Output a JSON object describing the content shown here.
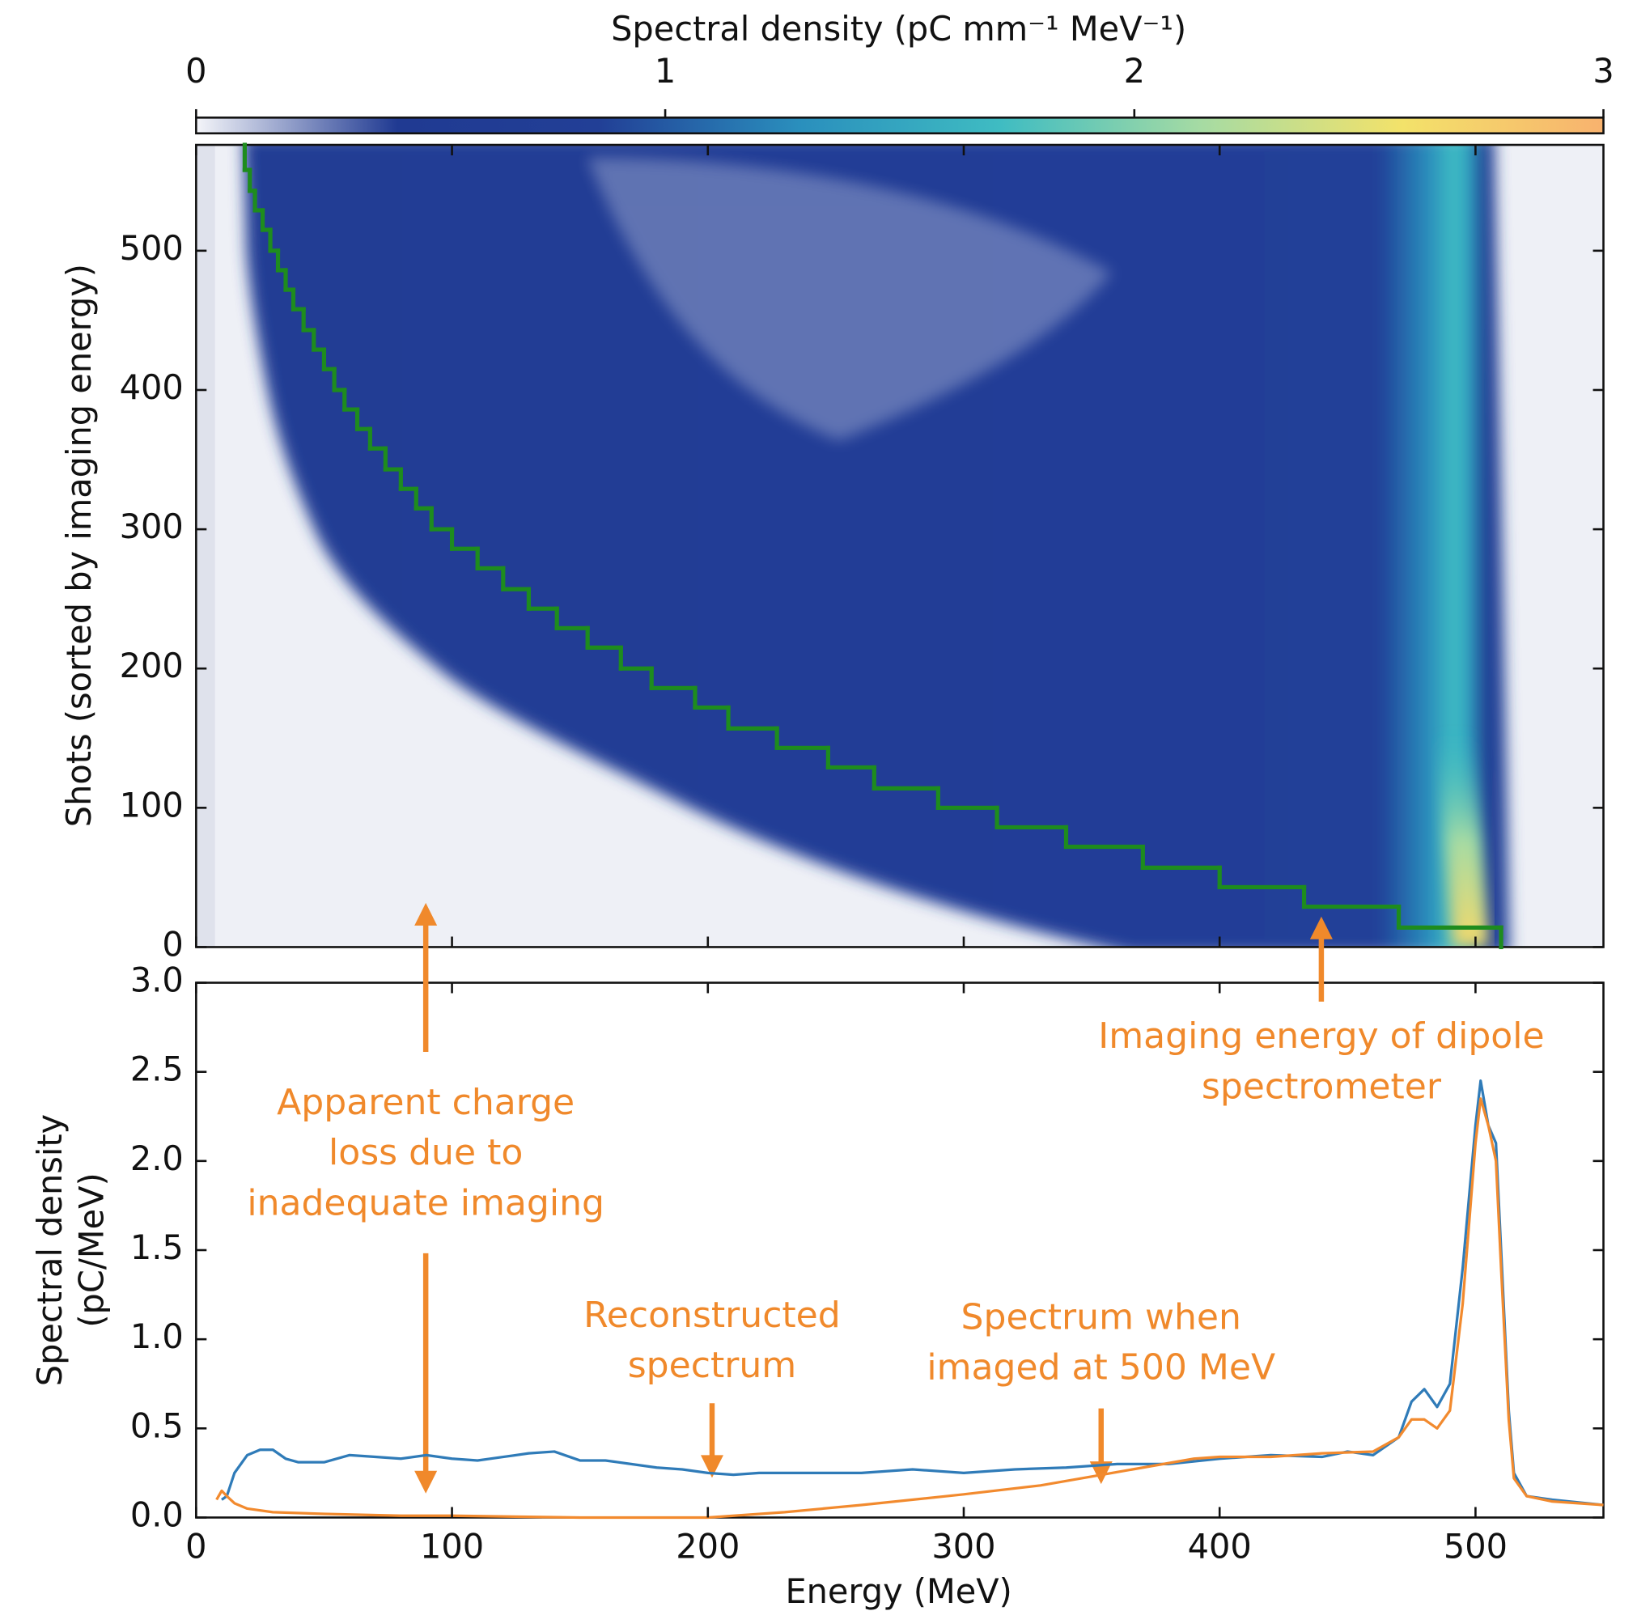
{
  "chart_data": [
    {
      "type": "heatmap",
      "ylabel": "Shots (sorted by imaging energy)",
      "colorbar": {
        "label": "Spectral density (pC mm⁻¹ MeV⁻¹)",
        "lim": [
          0,
          3
        ],
        "ticks": [
          0,
          1,
          2,
          3
        ],
        "colors": [
          "#f4f5f9",
          "#203a92",
          "#223f96",
          "#2a8fbd",
          "#3fbcc2",
          "#a6dba3",
          "#f3e26a",
          "#f8b26e"
        ]
      },
      "xlim": [
        0,
        550
      ],
      "ylim": [
        0,
        576
      ],
      "xticks": [
        0,
        100,
        200,
        300,
        400,
        500
      ],
      "yticks": [
        0,
        100,
        200,
        300,
        400,
        500
      ],
      "staircase": {
        "color": "#1e8c1e",
        "energy": [
          510,
          470,
          433,
          400,
          370,
          340,
          313,
          290,
          265,
          247,
          227,
          208,
          195,
          178,
          166,
          153,
          141,
          130,
          120,
          110,
          100,
          92,
          86,
          80,
          74,
          68,
          63,
          58,
          54,
          50,
          46,
          42,
          38,
          35,
          32,
          29,
          26,
          23,
          21,
          19
        ],
        "shots": [
          0,
          14,
          29,
          43,
          57,
          72,
          86,
          100,
          114,
          129,
          143,
          157,
          172,
          186,
          200,
          215,
          229,
          243,
          257,
          272,
          286,
          300,
          315,
          329,
          343,
          358,
          372,
          386,
          400,
          415,
          429,
          443,
          458,
          472,
          486,
          500,
          515,
          529,
          543,
          558,
          576
        ]
      }
    },
    {
      "type": "line",
      "xlabel": "Energy (MeV)",
      "ylabel": [
        "Spectral density",
        "(pC/MeV)"
      ],
      "xlim": [
        0,
        550
      ],
      "ylim": [
        0,
        3
      ],
      "xticks": [
        0,
        100,
        200,
        300,
        400,
        500
      ],
      "yticks": [
        {
          "value": 0,
          "label": "0.0"
        },
        0.5,
        {
          "value": 1,
          "label": "1.0"
        },
        1.5,
        {
          "value": 2,
          "label": "2.0"
        },
        2.5,
        {
          "value": 3,
          "label": "3.0"
        }
      ],
      "series": [
        {
          "color": "#2f7bb8",
          "x": [
            10,
            12,
            15,
            20,
            25,
            30,
            35,
            40,
            50,
            60,
            70,
            80,
            90,
            100,
            110,
            120,
            130,
            140,
            150,
            160,
            170,
            180,
            190,
            200,
            210,
            220,
            240,
            260,
            280,
            300,
            320,
            340,
            360,
            380,
            400,
            420,
            440,
            450,
            460,
            470,
            475,
            480,
            485,
            490,
            495,
            500,
            502,
            505,
            508,
            510,
            513,
            515,
            520,
            530,
            550
          ],
          "values": [
            0.1,
            0.12,
            0.25,
            0.35,
            0.38,
            0.38,
            0.33,
            0.31,
            0.31,
            0.35,
            0.34,
            0.33,
            0.35,
            0.33,
            0.32,
            0.34,
            0.36,
            0.37,
            0.32,
            0.32,
            0.3,
            0.28,
            0.27,
            0.25,
            0.24,
            0.25,
            0.25,
            0.25,
            0.27,
            0.25,
            0.27,
            0.28,
            0.3,
            0.3,
            0.33,
            0.35,
            0.34,
            0.37,
            0.35,
            0.45,
            0.65,
            0.72,
            0.62,
            0.75,
            1.4,
            2.2,
            2.45,
            2.2,
            2.1,
            1.5,
            0.6,
            0.25,
            0.12,
            0.1,
            0.07
          ]
        },
        {
          "color": "#f28a2e",
          "x": [
            8,
            10,
            12,
            15,
            20,
            30,
            50,
            80,
            100,
            150,
            200,
            230,
            260,
            300,
            330,
            350,
            370,
            390,
            400,
            420,
            440,
            460,
            470,
            475,
            480,
            485,
            490,
            495,
            500,
            502,
            505,
            508,
            510,
            513,
            515,
            520,
            530,
            550
          ],
          "values": [
            0.1,
            0.15,
            0.12,
            0.08,
            0.05,
            0.03,
            0.02,
            0.01,
            0.01,
            0,
            0,
            0.03,
            0.07,
            0.13,
            0.18,
            0.23,
            0.28,
            0.33,
            0.34,
            0.34,
            0.36,
            0.37,
            0.45,
            0.55,
            0.55,
            0.5,
            0.6,
            1.2,
            2.1,
            2.35,
            2.2,
            2,
            1.4,
            0.55,
            0.22,
            0.12,
            0.09,
            0.07
          ]
        }
      ],
      "annotations": [
        {
          "lines": [
            "Apparent charge",
            "loss due to",
            "inadequate imaging"
          ]
        },
        {
          "lines": [
            "Imaging energy of dipole",
            "spectrometer"
          ]
        },
        {
          "lines": [
            "Reconstructed",
            "spectrum"
          ]
        },
        {
          "lines": [
            "Spectrum when",
            "imaged at 500 MeV"
          ]
        }
      ]
    }
  ]
}
